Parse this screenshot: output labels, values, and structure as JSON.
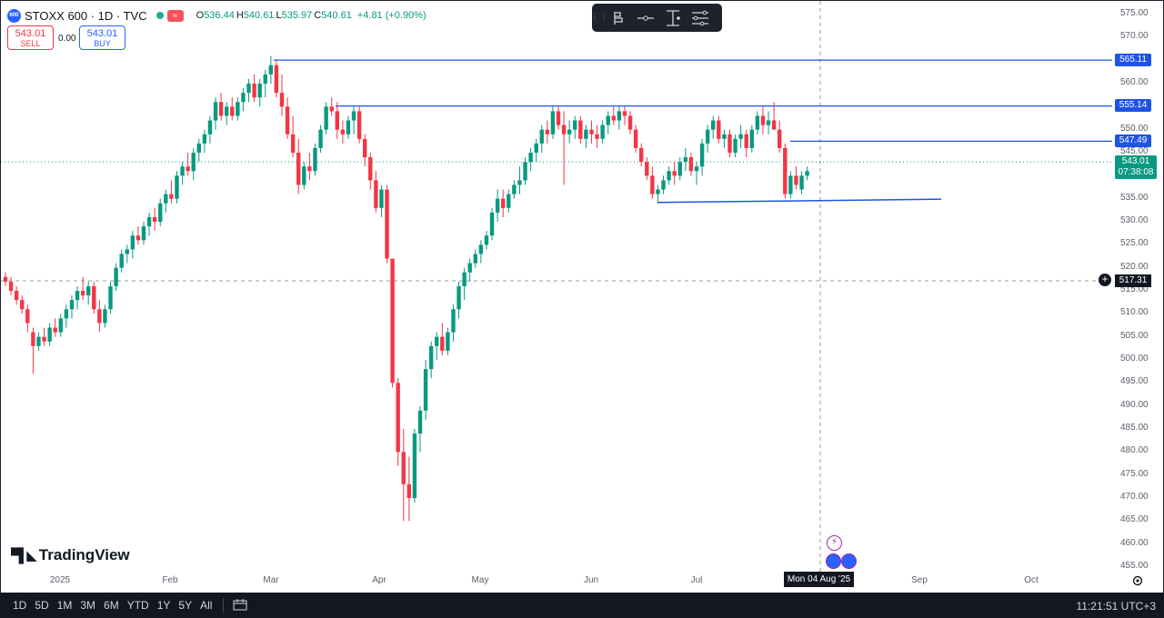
{
  "header": {
    "logo_text": "600",
    "symbol": "STOXX 600 · 1D · TVC",
    "open_label": "O",
    "open": "536.44",
    "high_label": "H",
    "high": "540.61",
    "low_label": "L",
    "low": "535.97",
    "close_label": "C",
    "close": "540.61",
    "change": "+4.81 (+0.90%)",
    "badge": "≈"
  },
  "trade": {
    "sell_price": "543.01",
    "sell_label": "SELL",
    "spread": "0.00",
    "buy_price": "543.01",
    "buy_label": "BUY"
  },
  "drawing_toolbar": {
    "icons": [
      "drag-handle-icon",
      "bars-pattern-icon",
      "horizontal-line-icon",
      "price-range-icon",
      "settings-lines-icon"
    ]
  },
  "price_axis": {
    "ticks": [
      "575.00",
      "570.00",
      "565.00",
      "560.00",
      "555.00",
      "550.00",
      "545.00",
      "540.00",
      "535.00",
      "530.00",
      "525.00",
      "520.00",
      "515.00",
      "510.00",
      "505.00",
      "500.00",
      "495.00",
      "490.00",
      "485.00",
      "480.00",
      "475.00",
      "470.00",
      "465.00",
      "460.00",
      "455.00"
    ],
    "line_labels": [
      {
        "value": "565.11",
        "color": "#1e53e5"
      },
      {
        "value": "555.14",
        "color": "#1e53e5"
      },
      {
        "value": "547.49",
        "color": "#1e53e5"
      }
    ],
    "last_price": "543.01",
    "countdown": "07:38:08",
    "crosshair_price": "517.31"
  },
  "time_axis": {
    "labels": [
      "2025",
      "Feb",
      "Mar",
      "Apr",
      "May",
      "Jun",
      "Jul",
      "Sep",
      "Oct"
    ],
    "crosshair_date": "Mon 04 Aug '25"
  },
  "branding": {
    "logo_text": "TradingView"
  },
  "bottom_bar": {
    "ranges": [
      "1D",
      "5D",
      "1M",
      "3M",
      "6M",
      "YTD",
      "1Y",
      "5Y",
      "All"
    ],
    "clock": "11:21:51 UTC+3"
  },
  "colors": {
    "up": "#089981",
    "down": "#f23645",
    "line": "#1e53e5",
    "accent": "#2962ff"
  },
  "chart_data": {
    "type": "candlestick",
    "ylim": [
      455,
      576
    ],
    "horizontal_lines": [
      565.11,
      555.14,
      547.49
    ],
    "support_trendline": [
      534.5,
      534.5
    ],
    "candles": [
      [
        518,
        519,
        516,
        517
      ],
      [
        517,
        518,
        514,
        515
      ],
      [
        515,
        516,
        512,
        513
      ],
      [
        513,
        514,
        510,
        511
      ],
      [
        511,
        512,
        506,
        508
      ],
      [
        506,
        507,
        497,
        503
      ],
      [
        503,
        506,
        502,
        505
      ],
      [
        505,
        507,
        503,
        504
      ],
      [
        504,
        508,
        503,
        507
      ],
      [
        507,
        509,
        505,
        506
      ],
      [
        506,
        510,
        505,
        509
      ],
      [
        509,
        512,
        507,
        511
      ],
      [
        511,
        514,
        509,
        513
      ],
      [
        513,
        516,
        511,
        515
      ],
      [
        515,
        518,
        513,
        514
      ],
      [
        514,
        517,
        512,
        516
      ],
      [
        516,
        517,
        510,
        511
      ],
      [
        511,
        513,
        506,
        508
      ],
      [
        508,
        512,
        507,
        511
      ],
      [
        511,
        517,
        510,
        516
      ],
      [
        516,
        521,
        515,
        520
      ],
      [
        520,
        524,
        519,
        523
      ],
      [
        523,
        525,
        521,
        524
      ],
      [
        524,
        528,
        522,
        527
      ],
      [
        527,
        529,
        525,
        526
      ],
      [
        526,
        530,
        525,
        529
      ],
      [
        529,
        532,
        527,
        531
      ],
      [
        531,
        533,
        528,
        530
      ],
      [
        530,
        535,
        529,
        534
      ],
      [
        534,
        537,
        532,
        536
      ],
      [
        536,
        539,
        534,
        535
      ],
      [
        535,
        541,
        534,
        540
      ],
      [
        540,
        543,
        538,
        542
      ],
      [
        542,
        545,
        540,
        541
      ],
      [
        541,
        546,
        539,
        545
      ],
      [
        545,
        548,
        543,
        547
      ],
      [
        547,
        550,
        545,
        549
      ],
      [
        549,
        553,
        547,
        552
      ],
      [
        552,
        557,
        550,
        556
      ],
      [
        556,
        558,
        552,
        553
      ],
      [
        553,
        556,
        551,
        555
      ],
      [
        555,
        557,
        552,
        553
      ],
      [
        553,
        557,
        552,
        556
      ],
      [
        556,
        559,
        554,
        558
      ],
      [
        558,
        561,
        556,
        560
      ],
      [
        560,
        562,
        556,
        557
      ],
      [
        557,
        561,
        555,
        560
      ],
      [
        560,
        563,
        557,
        562
      ],
      [
        562,
        566,
        560,
        564
      ],
      [
        564,
        565,
        557,
        558
      ],
      [
        558,
        562,
        553,
        555
      ],
      [
        555,
        557,
        548,
        549
      ],
      [
        549,
        553,
        544,
        545
      ],
      [
        545,
        548,
        536,
        538
      ],
      [
        538,
        543,
        537,
        542
      ],
      [
        542,
        545,
        539,
        541
      ],
      [
        541,
        547,
        540,
        546
      ],
      [
        546,
        551,
        545,
        550
      ],
      [
        550,
        556,
        549,
        555
      ],
      [
        555,
        557,
        553,
        554
      ],
      [
        554,
        556,
        548,
        550
      ],
      [
        550,
        552,
        547,
        549
      ],
      [
        549,
        553,
        548,
        552
      ],
      [
        552,
        555,
        549,
        554
      ],
      [
        554,
        555,
        547,
        548
      ],
      [
        548,
        549,
        542,
        544
      ],
      [
        544,
        545,
        537,
        539
      ],
      [
        539,
        541,
        532,
        533
      ],
      [
        533,
        538,
        531,
        537
      ],
      [
        537,
        538,
        521,
        522
      ],
      [
        522,
        522,
        494,
        495
      ],
      [
        495,
        496,
        477,
        480
      ],
      [
        480,
        485,
        465,
        473
      ],
      [
        473,
        479,
        465,
        470
      ],
      [
        470,
        485,
        469,
        484
      ],
      [
        484,
        490,
        480,
        489
      ],
      [
        489,
        500,
        487,
        498
      ],
      [
        498,
        504,
        496,
        503
      ],
      [
        503,
        506,
        500,
        505
      ],
      [
        505,
        508,
        501,
        502
      ],
      [
        502,
        507,
        501,
        506
      ],
      [
        506,
        512,
        504,
        511
      ],
      [
        511,
        517,
        509,
        516
      ],
      [
        516,
        520,
        513,
        519
      ],
      [
        519,
        522,
        517,
        521
      ],
      [
        521,
        524,
        520,
        523
      ],
      [
        523,
        526,
        521,
        525
      ],
      [
        525,
        528,
        524,
        527
      ],
      [
        527,
        533,
        526,
        532
      ],
      [
        532,
        537,
        530,
        535
      ],
      [
        535,
        537,
        531,
        533
      ],
      [
        533,
        537,
        532,
        536
      ],
      [
        536,
        539,
        535,
        538
      ],
      [
        538,
        542,
        536,
        539
      ],
      [
        539,
        544,
        538,
        543
      ],
      [
        543,
        546,
        541,
        545
      ],
      [
        545,
        548,
        543,
        547
      ],
      [
        547,
        551,
        545,
        550
      ],
      [
        550,
        552,
        547,
        549
      ],
      [
        549,
        555,
        548,
        554
      ],
      [
        554,
        555,
        550,
        551
      ],
      [
        551,
        554,
        538,
        549
      ],
      [
        549,
        552,
        547,
        550
      ],
      [
        550,
        553,
        548,
        552
      ],
      [
        552,
        553,
        547,
        548
      ],
      [
        548,
        551,
        546,
        550
      ],
      [
        550,
        552,
        547,
        549
      ],
      [
        549,
        551,
        546,
        548
      ],
      [
        548,
        552,
        547,
        551
      ],
      [
        551,
        554,
        549,
        553
      ],
      [
        553,
        555,
        551,
        552
      ],
      [
        552,
        555,
        550,
        554
      ],
      [
        554,
        555,
        551,
        553
      ],
      [
        553,
        554,
        549,
        550
      ],
      [
        550,
        551,
        545,
        546
      ],
      [
        546,
        547,
        542,
        543
      ],
      [
        543,
        544,
        539,
        540
      ],
      [
        540,
        542,
        535,
        536
      ],
      [
        536,
        538,
        534,
        537
      ],
      [
        537,
        540,
        536,
        539
      ],
      [
        539,
        542,
        538,
        541
      ],
      [
        541,
        543,
        538,
        540
      ],
      [
        540,
        544,
        539,
        543
      ],
      [
        543,
        546,
        541,
        544
      ],
      [
        544,
        545,
        540,
        541
      ],
      [
        541,
        543,
        538,
        542
      ],
      [
        542,
        548,
        540,
        547
      ],
      [
        547,
        551,
        545,
        550
      ],
      [
        550,
        553,
        548,
        552
      ],
      [
        552,
        553,
        547,
        548
      ],
      [
        548,
        550,
        546,
        549
      ],
      [
        549,
        550,
        544,
        545
      ],
      [
        545,
        549,
        544,
        548
      ],
      [
        548,
        551,
        546,
        549
      ],
      [
        549,
        550,
        544,
        546
      ],
      [
        546,
        551,
        545,
        550
      ],
      [
        550,
        554,
        549,
        553
      ],
      [
        553,
        555,
        549,
        551
      ],
      [
        551,
        554,
        549,
        552
      ],
      [
        552,
        556,
        550,
        550
      ],
      [
        550,
        552,
        545,
        546
      ],
      [
        546,
        547,
        535,
        536
      ],
      [
        536,
        541,
        535,
        540
      ],
      [
        540,
        542,
        537,
        538
      ],
      [
        537,
        541,
        536,
        540
      ],
      [
        540,
        542,
        539,
        541
      ]
    ]
  }
}
